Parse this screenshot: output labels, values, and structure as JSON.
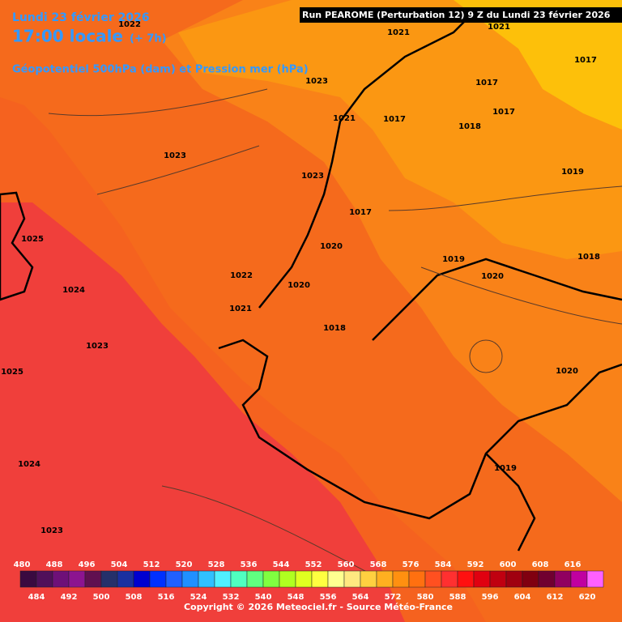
{
  "header": {
    "date": "Lundi 23 février 2026",
    "time": "17:00 locale",
    "offset": "(+ 7h)",
    "field": "Géopotentiel 500hPa (dam) et Pression mer (hPa)",
    "run": "Run PEAROME (Perturbation 12) 9 Z du Lundi 23 février 2026"
  },
  "pressure_labels": [
    1022,
    1021,
    1021,
    1017,
    1023,
    1017,
    1021,
    1017,
    1017,
    1018,
    1023,
    1023,
    1019,
    1017,
    1025,
    1020,
    1019,
    1018,
    1022,
    1020,
    1020,
    1024,
    1021,
    1018,
    1023,
    1025,
    1020,
    1024,
    1019,
    1023
  ],
  "colorbar": {
    "top_labels": [
      480,
      488,
      496,
      504,
      512,
      520,
      528,
      536,
      544,
      552,
      560,
      568,
      576,
      584,
      592,
      600,
      608,
      616
    ],
    "bottom_labels": [
      484,
      492,
      500,
      508,
      516,
      524,
      532,
      540,
      548,
      556,
      564,
      572,
      580,
      588,
      596,
      604,
      612,
      620
    ],
    "colors": [
      "#3a0a40",
      "#50105a",
      "#6e1078",
      "#8c1490",
      "#601050",
      "#25306a",
      "#1a30a0",
      "#0000d0",
      "#0030ff",
      "#2060ff",
      "#2090ff",
      "#30c0ff",
      "#50f0ff",
      "#50ffc0",
      "#60ff80",
      "#80ff40",
      "#b0ff20",
      "#e0ff20",
      "#ffff40",
      "#ffff90",
      "#ffe880",
      "#ffd040",
      "#ffb020",
      "#ff9010",
      "#ff7010",
      "#ff5020",
      "#ff3030",
      "#ff1010",
      "#e00010",
      "#c00010",
      "#a00010",
      "#800010",
      "#700030",
      "#900060",
      "#c000a0",
      "#ff60ff"
    ]
  },
  "copyright": "Copyright © 2026 Meteociel.fr - Source Météo-France"
}
